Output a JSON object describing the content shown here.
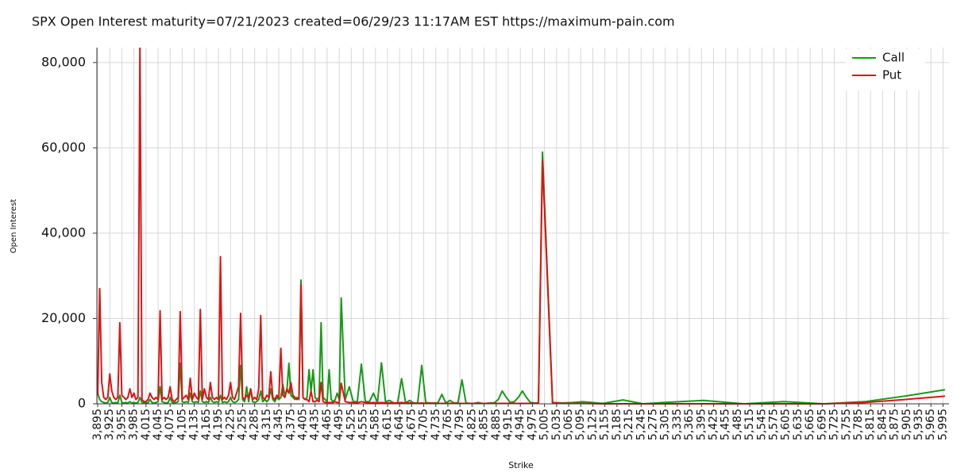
{
  "chart_data": {
    "type": "line",
    "title": "SPX Open Interest maturity=07/21/2023 created=06/29/23 11:17AM EST https://maximum-pain.com",
    "xlabel": "Strike",
    "ylabel": "Open Interest",
    "x": [
      3895,
      3900,
      3905,
      3910,
      3915,
      3920,
      3925,
      3930,
      3935,
      3940,
      3945,
      3950,
      3955,
      3960,
      3965,
      3970,
      3975,
      3980,
      3985,
      3990,
      3995,
      4000,
      4005,
      4010,
      4015,
      4020,
      4025,
      4030,
      4035,
      4040,
      4045,
      4050,
      4055,
      4060,
      4065,
      4070,
      4075,
      4080,
      4085,
      4090,
      4095,
      4100,
      4105,
      4110,
      4115,
      4120,
      4125,
      4130,
      4135,
      4140,
      4145,
      4150,
      4155,
      4160,
      4165,
      4170,
      4175,
      4180,
      4185,
      4190,
      4195,
      4200,
      4205,
      4210,
      4215,
      4220,
      4225,
      4230,
      4235,
      4240,
      4245,
      4250,
      4255,
      4260,
      4265,
      4270,
      4275,
      4280,
      4285,
      4290,
      4295,
      4300,
      4305,
      4310,
      4315,
      4320,
      4325,
      4330,
      4335,
      4340,
      4345,
      4350,
      4355,
      4360,
      4365,
      4370,
      4375,
      4380,
      4385,
      4390,
      4395,
      4400,
      4405,
      4410,
      4415,
      4420,
      4425,
      4430,
      4435,
      4440,
      4445,
      4450,
      4455,
      4460,
      4465,
      4470,
      4475,
      4480,
      4485,
      4490,
      4495,
      4500,
      4510,
      4520,
      4530,
      4540,
      4550,
      4560,
      4570,
      4580,
      4590,
      4600,
      4610,
      4620,
      4630,
      4640,
      4650,
      4660,
      4670,
      4680,
      4690,
      4700,
      4710,
      4720,
      4730,
      4740,
      4750,
      4760,
      4770,
      4780,
      4790,
      4800,
      4810,
      4820,
      4830,
      4840,
      4850,
      4860,
      4870,
      4880,
      4890,
      4900,
      4910,
      4920,
      4930,
      4940,
      4950,
      4960,
      4970,
      4980,
      4990,
      5000,
      5025,
      5050,
      5075,
      5100,
      5150,
      5200,
      5250,
      5300,
      5400,
      5500,
      5600,
      5700,
      5800,
      5900,
      6000
    ],
    "series": [
      {
        "name": "Call",
        "color": "#169a16",
        "values": [
          2500,
          1000,
          500,
          300,
          200,
          300,
          1500,
          300,
          200,
          300,
          200,
          2000,
          300,
          200,
          300,
          200,
          500,
          200,
          300,
          200,
          300,
          1500,
          300,
          200,
          300,
          200,
          1000,
          300,
          200,
          300,
          500,
          4000,
          500,
          300,
          200,
          300,
          1500,
          300,
          200,
          300,
          500,
          9500,
          500,
          300,
          500,
          300,
          2500,
          500,
          300,
          500,
          300,
          3000,
          500,
          300,
          500,
          300,
          1500,
          500,
          300,
          500,
          300,
          2000,
          300,
          500,
          300,
          500,
          1500,
          500,
          300,
          500,
          1000,
          9000,
          1000,
          500,
          4000,
          500,
          3500,
          500,
          300,
          500,
          1000,
          3000,
          500,
          1000,
          500,
          1000,
          3500,
          1000,
          500,
          1500,
          1000,
          1500,
          4500,
          2000,
          3000,
          9500,
          2000,
          1500,
          1000,
          1500,
          1000,
          29000,
          1500,
          1000,
          1500,
          8000,
          3000,
          8000,
          1500,
          1000,
          1500,
          19000,
          1500,
          1000,
          500,
          8000,
          1000,
          500,
          1000,
          2500,
          1000,
          24800,
          1000,
          4000,
          500,
          500,
          9300,
          500,
          500,
          2500,
          300,
          9600,
          500,
          800,
          200,
          200,
          5900,
          200,
          800,
          200,
          200,
          9000,
          300,
          200,
          200,
          200,
          2200,
          200,
          800,
          200,
          200,
          5600,
          200,
          100,
          100,
          300,
          100,
          100,
          200,
          200,
          1000,
          3000,
          1500,
          300,
          500,
          1500,
          3000,
          1500,
          300,
          200,
          200,
          59000,
          300,
          200,
          300,
          500,
          100,
          900,
          0,
          300,
          800,
          0,
          500,
          0,
          500,
          1800,
          3300
        ]
      },
      {
        "name": "Put",
        "color": "#dd1414",
        "values": [
          2000,
          27000,
          5000,
          1500,
          1000,
          1500,
          7000,
          3000,
          1500,
          1000,
          1500,
          19000,
          2000,
          1500,
          1000,
          1500,
          3500,
          1500,
          2500,
          1000,
          1500,
          84000,
          1000,
          500,
          500,
          1000,
          2500,
          1500,
          1000,
          1500,
          1000,
          21800,
          1000,
          1500,
          1000,
          1500,
          4000,
          1000,
          500,
          1000,
          1500,
          21600,
          1000,
          1500,
          2000,
          1000,
          6000,
          1000,
          2500,
          1500,
          1000,
          22100,
          1000,
          3500,
          1500,
          1000,
          5000,
          1500,
          1000,
          1500,
          1000,
          34500,
          1000,
          1500,
          1000,
          2000,
          5000,
          1500,
          1000,
          2500,
          4000,
          21200,
          1500,
          1000,
          2000,
          1500,
          3500,
          1000,
          1500,
          1000,
          3500,
          20700,
          1500,
          1000,
          2000,
          1500,
          7500,
          1500,
          1000,
          2000,
          1500,
          13000,
          2000,
          1500,
          3500,
          2500,
          5000,
          2000,
          1500,
          1000,
          1500,
          28000,
          1500,
          1000,
          1000,
          500,
          3000,
          500,
          500,
          800,
          500,
          5000,
          500,
          300,
          300,
          300,
          300,
          300,
          500,
          300,
          300,
          4800,
          500,
          300,
          300,
          200,
          500,
          300,
          200,
          300,
          200,
          300,
          200,
          200,
          200,
          200,
          300,
          200,
          200,
          100,
          100,
          200,
          100,
          100,
          100,
          100,
          100,
          100,
          100,
          100,
          100,
          100,
          100,
          100,
          100,
          100,
          100,
          100,
          100,
          100,
          100,
          100,
          100,
          100,
          100,
          100,
          100,
          100,
          100,
          100,
          100,
          57000,
          200,
          100,
          100,
          100,
          0,
          0,
          0,
          0,
          0,
          0,
          0,
          0,
          300,
          1000,
          1800
        ]
      }
    ],
    "xlim": [
      3893,
      6010
    ],
    "ylim": [
      0,
      83500
    ],
    "xticks": [
      {
        "value": 3895,
        "label": "3,895"
      },
      {
        "value": 3925,
        "label": "3,925"
      },
      {
        "value": 3955,
        "label": "3,955"
      },
      {
        "value": 3985,
        "label": "3,985"
      },
      {
        "value": 4015,
        "label": "4,015"
      },
      {
        "value": 4045,
        "label": "4,045"
      },
      {
        "value": 4075,
        "label": "4,075"
      },
      {
        "value": 4105,
        "label": "4,105"
      },
      {
        "value": 4135,
        "label": "4,135"
      },
      {
        "value": 4165,
        "label": "4,165"
      },
      {
        "value": 4195,
        "label": "4,195"
      },
      {
        "value": 4225,
        "label": "4,225"
      },
      {
        "value": 4255,
        "label": "4,255"
      },
      {
        "value": 4285,
        "label": "4,285"
      },
      {
        "value": 4315,
        "label": "4,315"
      },
      {
        "value": 4345,
        "label": "4,345"
      },
      {
        "value": 4375,
        "label": "4,375"
      },
      {
        "value": 4405,
        "label": "4,405"
      },
      {
        "value": 4435,
        "label": "4,435"
      },
      {
        "value": 4465,
        "label": "4,465"
      },
      {
        "value": 4495,
        "label": "4,495"
      },
      {
        "value": 4525,
        "label": "4,525"
      },
      {
        "value": 4555,
        "label": "4,555"
      },
      {
        "value": 4585,
        "label": "4,585"
      },
      {
        "value": 4615,
        "label": "4,615"
      },
      {
        "value": 4645,
        "label": "4,645"
      },
      {
        "value": 4675,
        "label": "4,675"
      },
      {
        "value": 4705,
        "label": "4,705"
      },
      {
        "value": 4735,
        "label": "4,735"
      },
      {
        "value": 4765,
        "label": "4,765"
      },
      {
        "value": 4795,
        "label": "4,795"
      },
      {
        "value": 4825,
        "label": "4,825"
      },
      {
        "value": 4855,
        "label": "4,855"
      },
      {
        "value": 4885,
        "label": "4,885"
      },
      {
        "value": 4915,
        "label": "4,915"
      },
      {
        "value": 4945,
        "label": "4,945"
      },
      {
        "value": 4975,
        "label": "4,975"
      },
      {
        "value": 5005,
        "label": "5,005"
      },
      {
        "value": 5035,
        "label": "5,035"
      },
      {
        "value": 5065,
        "label": "5,065"
      },
      {
        "value": 5095,
        "label": "5,095"
      },
      {
        "value": 5125,
        "label": "5,125"
      },
      {
        "value": 5155,
        "label": "5,155"
      },
      {
        "value": 5185,
        "label": "5,185"
      },
      {
        "value": 5215,
        "label": "5,215"
      },
      {
        "value": 5245,
        "label": "5,245"
      },
      {
        "value": 5275,
        "label": "5,275"
      },
      {
        "value": 5305,
        "label": "5,305"
      },
      {
        "value": 5335,
        "label": "5,335"
      },
      {
        "value": 5365,
        "label": "5,365"
      },
      {
        "value": 5395,
        "label": "5,395"
      },
      {
        "value": 5425,
        "label": "5,425"
      },
      {
        "value": 5455,
        "label": "5,455"
      },
      {
        "value": 5485,
        "label": "5,485"
      },
      {
        "value": 5515,
        "label": "5,515"
      },
      {
        "value": 5545,
        "label": "5,545"
      },
      {
        "value": 5575,
        "label": "5,575"
      },
      {
        "value": 5605,
        "label": "5,605"
      },
      {
        "value": 5635,
        "label": "5,635"
      },
      {
        "value": 5665,
        "label": "5,665"
      },
      {
        "value": 5695,
        "label": "5,695"
      },
      {
        "value": 5725,
        "label": "5,725"
      },
      {
        "value": 5755,
        "label": "5,755"
      },
      {
        "value": 5785,
        "label": "5,785"
      },
      {
        "value": 5815,
        "label": "5,815"
      },
      {
        "value": 5845,
        "label": "5,845"
      },
      {
        "value": 5875,
        "label": "5,875"
      },
      {
        "value": 5905,
        "label": "5,905"
      },
      {
        "value": 5935,
        "label": "5,935"
      },
      {
        "value": 5965,
        "label": "5,965"
      },
      {
        "value": 5995,
        "label": "5,995"
      }
    ],
    "yticks": [
      0,
      {
        "value": 20000,
        "label": "20,000"
      },
      {
        "value": 40000,
        "label": "40,000"
      },
      {
        "value": 60000,
        "label": "60,000"
      },
      {
        "value": 80000,
        "label": "80,000"
      }
    ],
    "grid": true,
    "legend": "upper right"
  }
}
